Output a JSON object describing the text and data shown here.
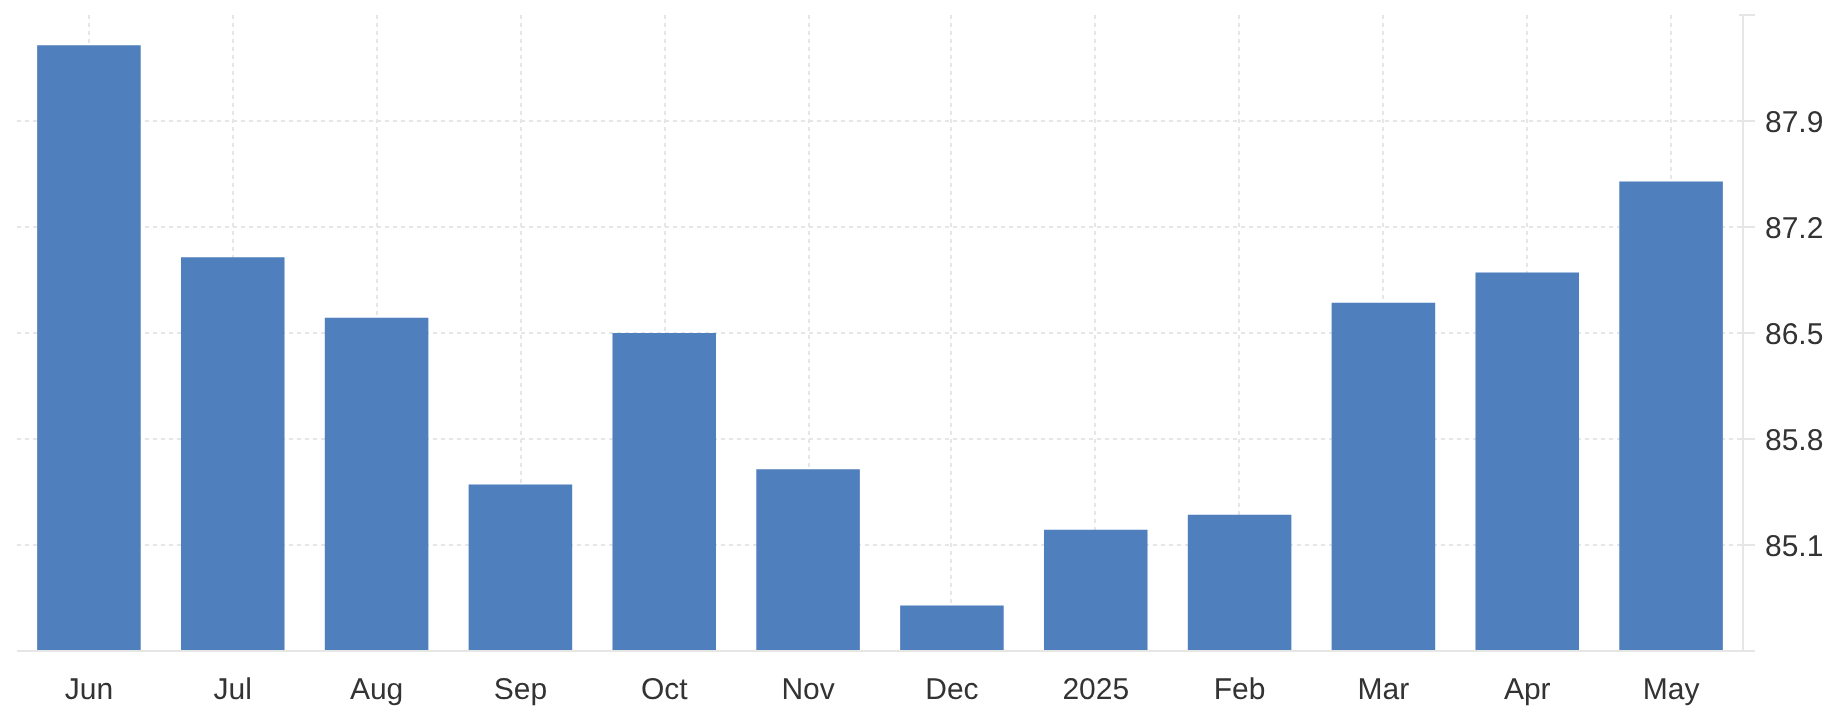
{
  "chart_data": {
    "type": "bar",
    "categories": [
      "Jun",
      "Jul",
      "Aug",
      "Sep",
      "Oct",
      "Nov",
      "Dec",
      "2025",
      "Feb",
      "Mar",
      "Apr",
      "May"
    ],
    "values": [
      88.4,
      87.0,
      86.6,
      85.5,
      86.5,
      85.6,
      84.7,
      85.2,
      85.3,
      86.7,
      86.9,
      87.5
    ],
    "color": "#4f80bd",
    "ylim": [
      84.4,
      88.6
    ],
    "yticks": [
      {
        "value": 84.4,
        "label": null
      },
      85.1,
      85.8,
      86.5,
      87.2,
      87.9,
      {
        "value": 88.6,
        "label": null
      }
    ],
    "grid": true
  }
}
